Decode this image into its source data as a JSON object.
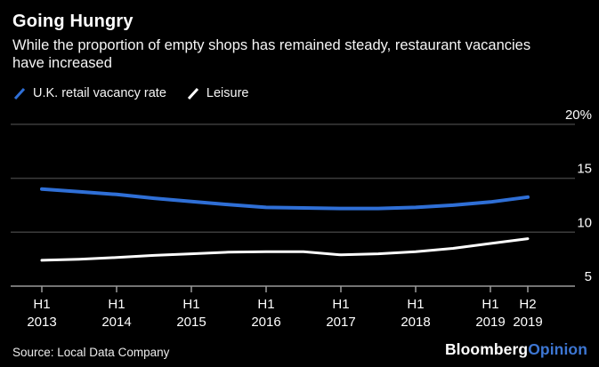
{
  "header": {
    "title": "Going Hungry",
    "subtitle": "While the proportion of empty shops has remained steady, restaurant vacancies have increased"
  },
  "legend": [
    {
      "label": "U.K. retail vacancy rate",
      "color": "#2f6fd6"
    },
    {
      "label": "Leisure",
      "color": "#ffffff"
    }
  ],
  "colors": {
    "background": "#000000",
    "text": "#ffffff",
    "gridline": "#3d3d3d",
    "axis": "#9b9b9b",
    "accent_blue": "#2f6fd6",
    "brand_accent": "#3d76d2"
  },
  "footer": {
    "source": "Source: Local Data Company",
    "brand": "Bloomberg",
    "brand_suffix": "Opinion"
  },
  "chart_data": {
    "type": "line",
    "title": "Going Hungry",
    "subtitle": "While the proportion of empty shops has remained steady, restaurant vacancies have increased",
    "xlabel": "",
    "ylabel": "",
    "ylim": [
      5,
      20
    ],
    "grid": "horizontal",
    "legend_position": "top-left",
    "categories": [
      "H1 2013",
      "H2 2013",
      "H1 2014",
      "H2 2014",
      "H1 2015",
      "H2 2015",
      "H1 2016",
      "H2 2016",
      "H1 2017",
      "H2 2017",
      "H1 2018",
      "H2 2018",
      "H1 2019",
      "H2 2019"
    ],
    "series": [
      {
        "name": "U.K. retail vacancy rate",
        "color": "#2f6fd6",
        "stroke_width": 4,
        "values": [
          14.0,
          13.75,
          13.5,
          13.15,
          12.85,
          12.55,
          12.3,
          12.25,
          12.2,
          12.2,
          12.3,
          12.5,
          12.8,
          13.25
        ]
      },
      {
        "name": "Leisure",
        "color": "#ffffff",
        "stroke_width": 3,
        "values": [
          7.4,
          7.5,
          7.65,
          7.85,
          8.0,
          8.15,
          8.2,
          8.2,
          7.9,
          8.0,
          8.2,
          8.5,
          8.95,
          9.4
        ]
      }
    ],
    "y_ticks": [
      {
        "value": 20,
        "label": "20%"
      },
      {
        "value": 15,
        "label": "15"
      },
      {
        "value": 10,
        "label": "10"
      },
      {
        "value": 5,
        "label": "5"
      }
    ],
    "x_ticks": [
      {
        "index": 0,
        "line1": "H1",
        "line2": "2013"
      },
      {
        "index": 2,
        "line1": "H1",
        "line2": "2014"
      },
      {
        "index": 4,
        "line1": "H1",
        "line2": "2015"
      },
      {
        "index": 6,
        "line1": "H1",
        "line2": "2016"
      },
      {
        "index": 8,
        "line1": "H1",
        "line2": "2017"
      },
      {
        "index": 10,
        "line1": "H1",
        "line2": "2018"
      },
      {
        "index": 12,
        "line1": "H1",
        "line2": "2019"
      },
      {
        "index": 13,
        "line1": "H2",
        "line2": "2019"
      }
    ]
  }
}
